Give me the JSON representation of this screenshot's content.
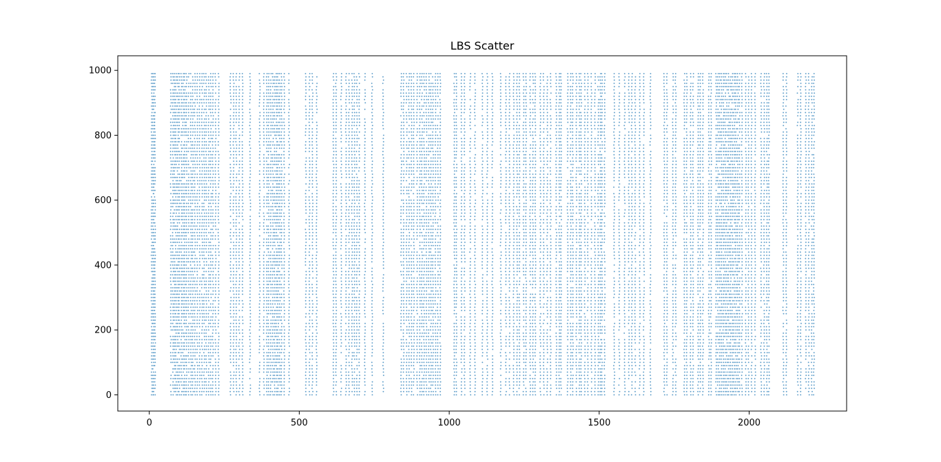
{
  "chart_data": {
    "type": "scatter",
    "title": "LBS Scatter",
    "xlabel": "",
    "ylabel": "",
    "xlim": [
      -105,
      2325
    ],
    "ylim": [
      -50,
      1045
    ],
    "xticks": [
      0,
      500,
      1000,
      1500,
      2000
    ],
    "yticks": [
      0,
      200,
      400,
      600,
      800,
      1000
    ],
    "xtick_labels": [
      "0",
      "500",
      "1000",
      "1500",
      "2000"
    ],
    "ytick_labels": [
      "0",
      "200",
      "400",
      "600",
      "800",
      "1000"
    ],
    "grid": false,
    "legend": "none",
    "marker_color": "#1f77b4",
    "y_range_of_points": [
      0,
      990
    ],
    "y_spacing": 10,
    "x_columns": [
      8,
      12,
      15,
      19,
      72,
      79,
      84,
      89,
      95,
      100,
      107,
      113,
      118,
      124,
      131,
      139,
      145,
      152,
      160,
      168,
      176,
      183,
      190,
      198,
      205,
      212,
      221,
      231,
      271,
      281,
      290,
      300,
      311,
      336,
      368,
      382,
      392,
      398,
      405,
      412,
      418,
      424,
      429,
      435,
      441,
      450,
      466,
      522,
      534,
      544,
      558,
      614,
      623,
      640,
      656,
      666,
      676,
      684,
      692,
      700,
      719,
      743,
      780,
      840,
      848,
      858,
      866,
      874,
      882,
      893,
      902,
      909,
      916,
      924,
      932,
      939,
      946,
      954,
      962,
      970,
      1017,
      1024,
      1041,
      1051,
      1070,
      1086,
      1111,
      1127,
      1144,
      1172,
      1189,
      1201,
      1215,
      1226,
      1234,
      1248,
      1256,
      1270,
      1279,
      1287,
      1304,
      1315,
      1327,
      1338,
      1357,
      1367,
      1373,
      1395,
      1405,
      1412,
      1424,
      1434,
      1440,
      1452,
      1462,
      1474,
      1486,
      1497,
      1504,
      1509,
      1518,
      1550,
      1567,
      1585,
      1599,
      1609,
      1620,
      1635,
      1649,
      1671,
      1717,
      1726,
      1746,
      1755,
      1784,
      1792,
      1805,
      1813,
      1830,
      1837,
      1846,
      1866,
      1873,
      1890,
      1896,
      1902,
      1908,
      1914,
      1920,
      1926,
      1932,
      1938,
      1944,
      1950,
      1956,
      1962,
      1968,
      1976,
      1989,
      1998,
      2008,
      2020,
      2040,
      2050,
      2059,
      2066,
      2114,
      2124,
      2162,
      2172,
      2189,
      2199,
      2209,
      2216
    ]
  }
}
